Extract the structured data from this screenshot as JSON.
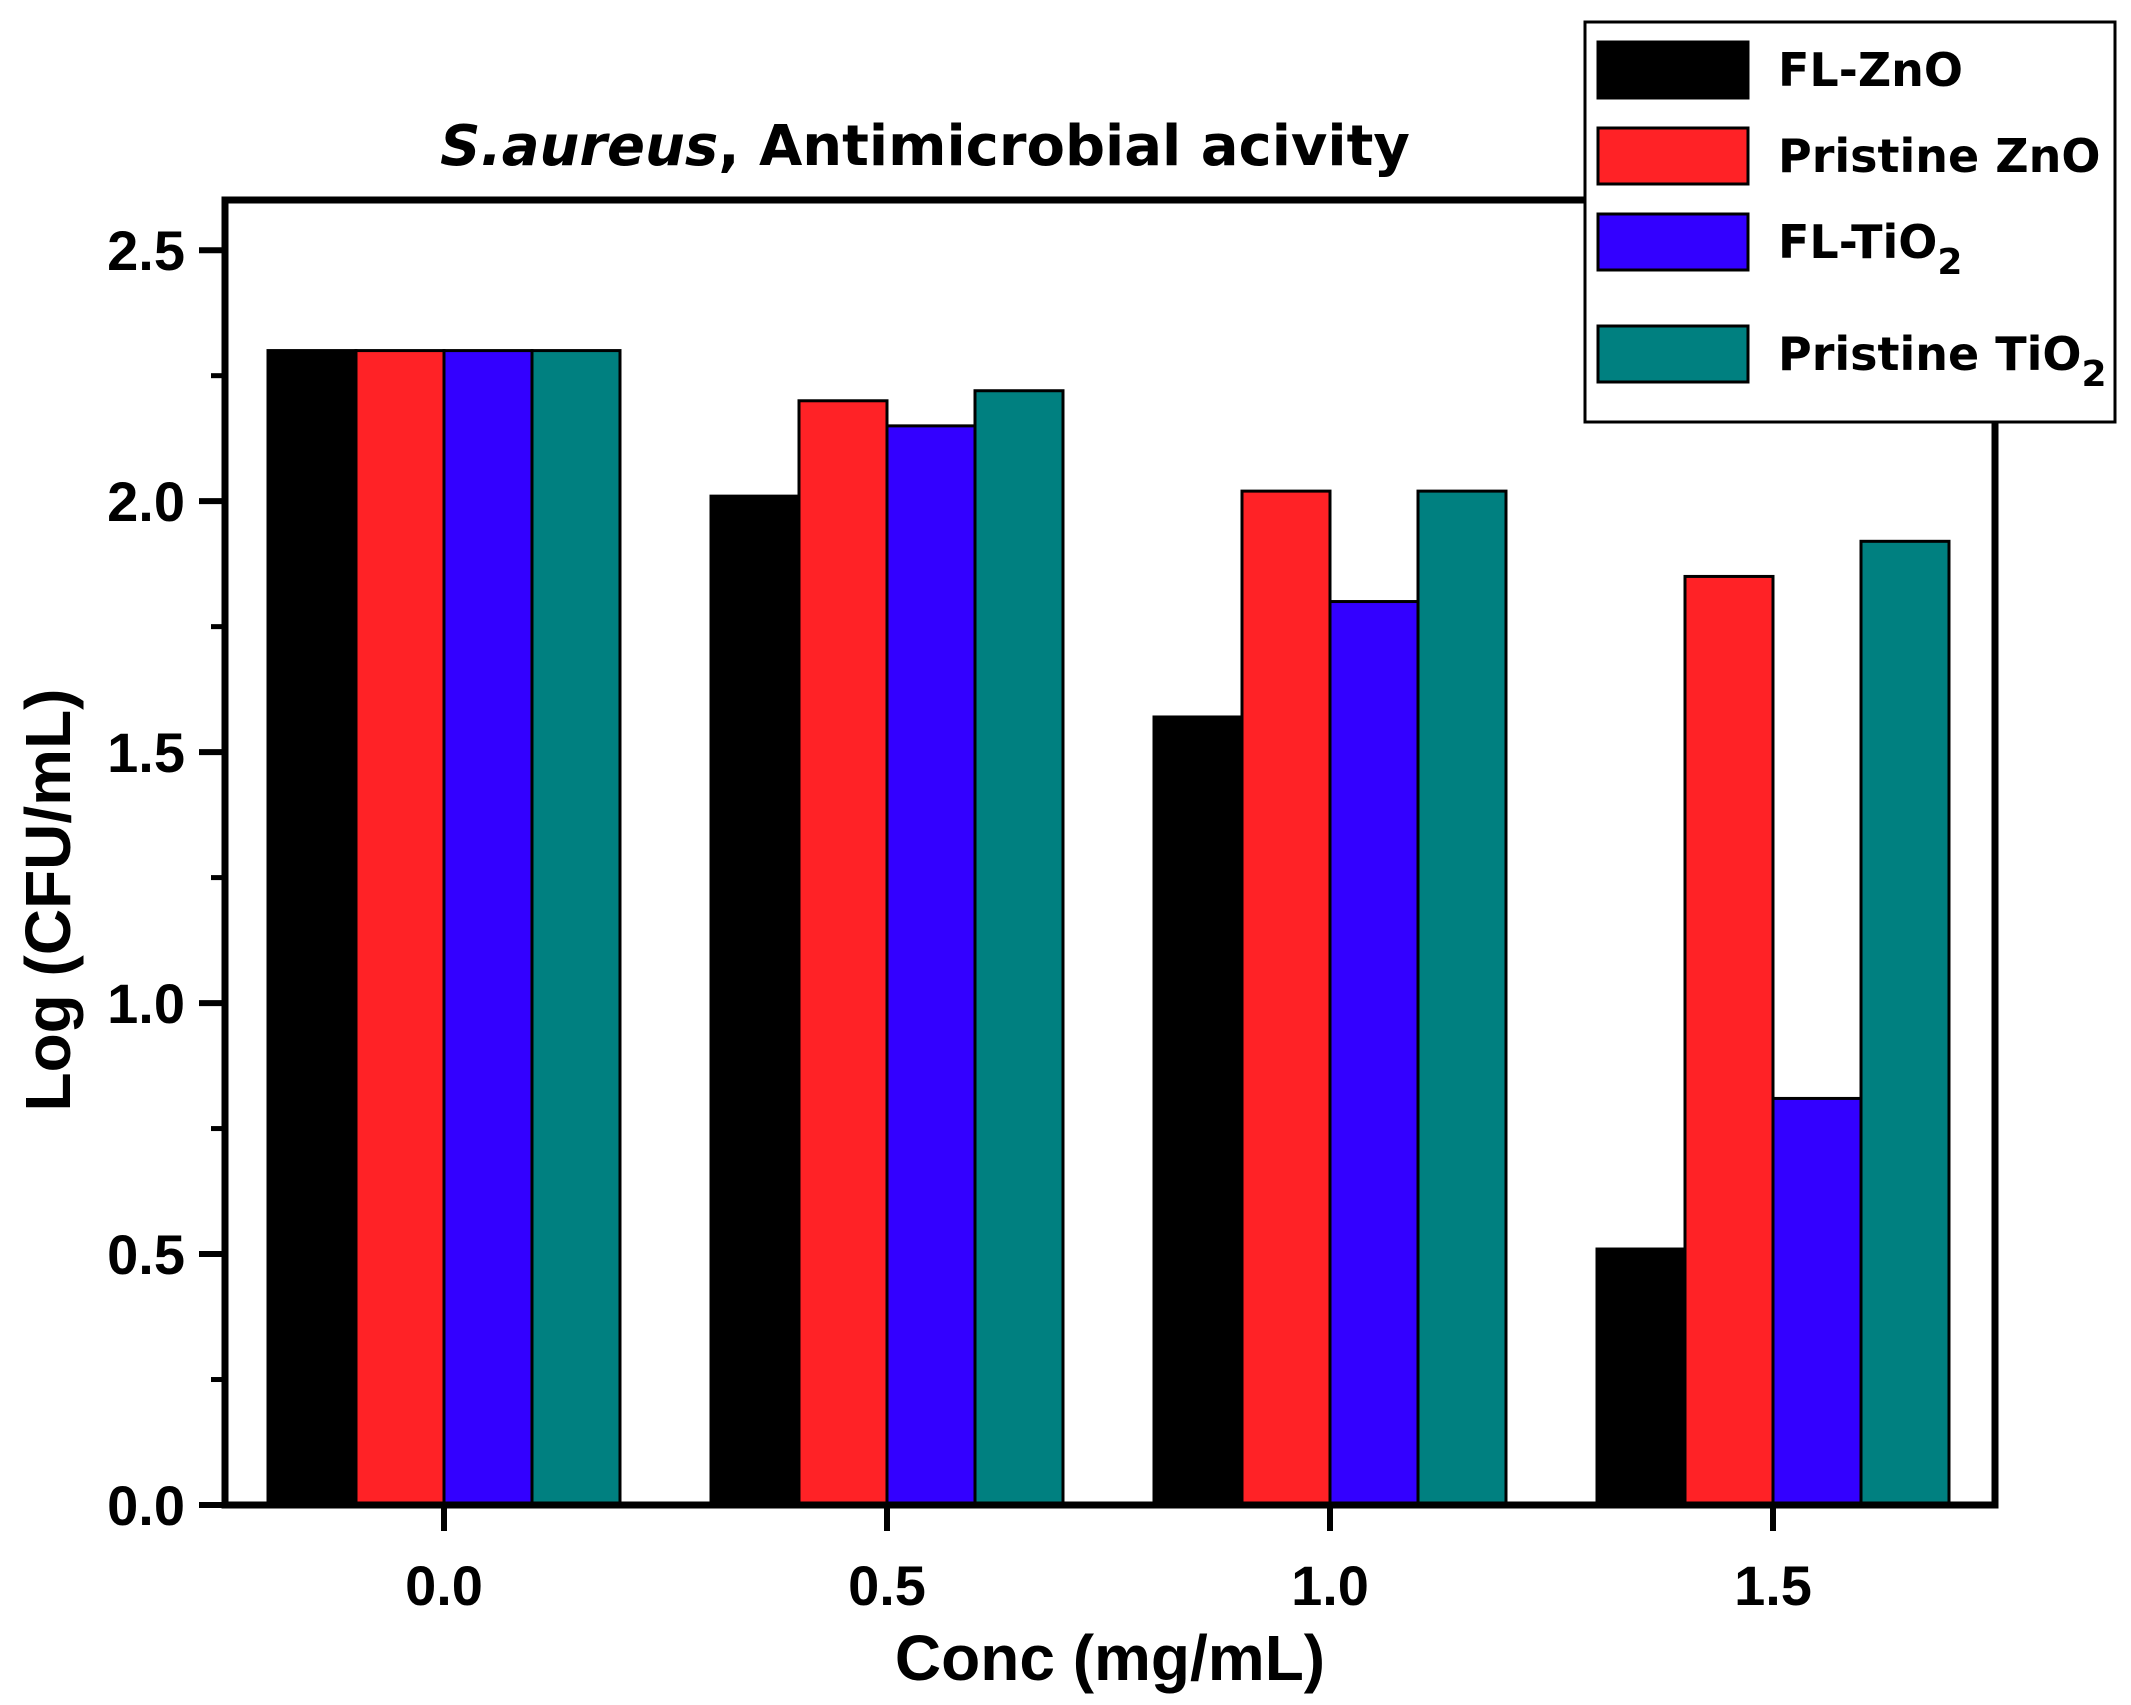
{
  "chart_data": {
    "type": "bar",
    "title_italic": "S.aureus",
    "title_rest": ", Antimicrobial acivity",
    "xlabel": "Conc (mg/mL)",
    "ylabel": "Log (CFU/mL)",
    "categories": [
      "0.0",
      "0.5",
      "1.0",
      "1.5"
    ],
    "ylim": [
      0,
      2.6
    ],
    "yticks": [
      "0.0",
      "0.5",
      "1.0",
      "1.5",
      "2.0",
      "2.5"
    ],
    "legend_position": "top-right",
    "grid": false,
    "series": [
      {
        "name": "FL-ZnO",
        "color": "#000000",
        "values": [
          2.3,
          2.01,
          1.57,
          0.51
        ]
      },
      {
        "name": "Pristine ZnO",
        "color": "#ff2226",
        "values": [
          2.3,
          2.2,
          2.02,
          1.85
        ]
      },
      {
        "name": "FL-TiO",
        "subscript": "2",
        "color": "#3300ff",
        "values": [
          2.3,
          2.15,
          1.8,
          0.81
        ]
      },
      {
        "name": "Pristine TiO",
        "subscript": "2",
        "color": "#008080",
        "values": [
          2.3,
          2.22,
          2.02,
          1.92
        ]
      }
    ]
  }
}
